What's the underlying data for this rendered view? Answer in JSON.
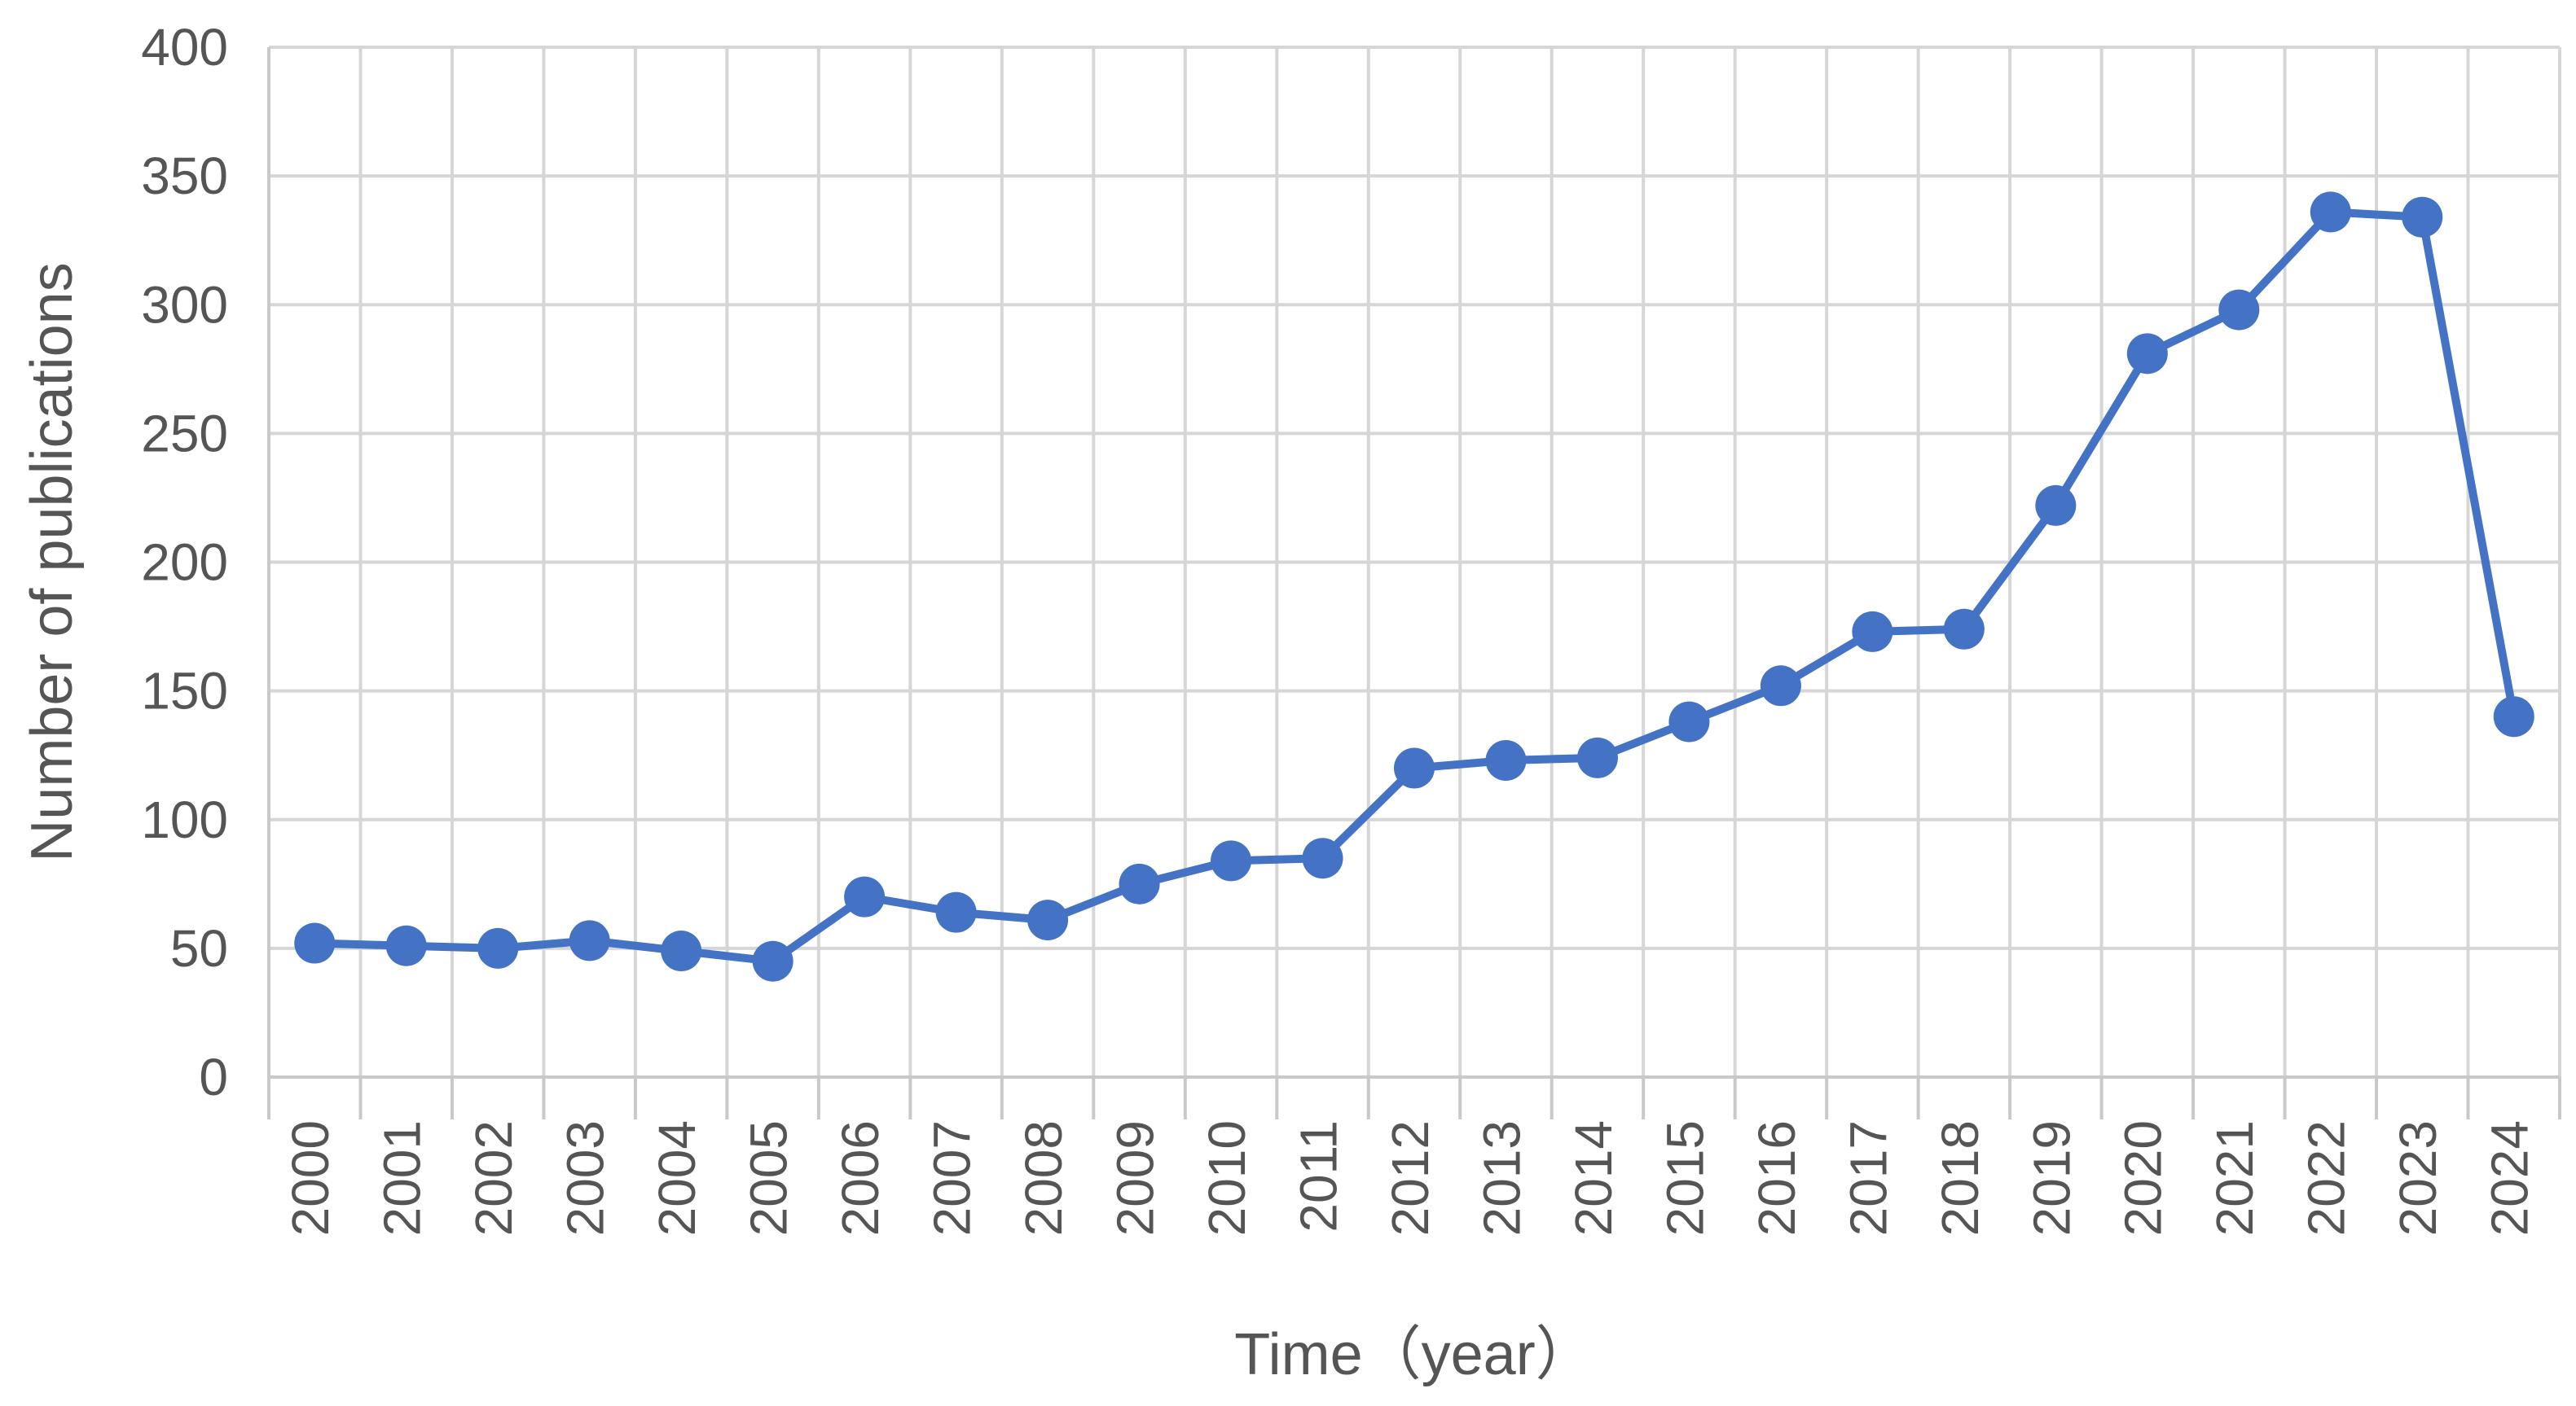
{
  "chart_data": {
    "type": "line",
    "title": "",
    "xlabel": "Time（year）",
    "ylabel": "Number of publications",
    "categories": [
      "2000",
      "2001",
      "2002",
      "2003",
      "2004",
      "2005",
      "2006",
      "2007",
      "2008",
      "2009",
      "2010",
      "2011",
      "2012",
      "2013",
      "2014",
      "2015",
      "2016",
      "2017",
      "2018",
      "2019",
      "2020",
      "2021",
      "2022",
      "2023",
      "2024"
    ],
    "series": [
      {
        "values": [
          52,
          51,
          50,
          53,
          49,
          45,
          70,
          64,
          61,
          75,
          84,
          85,
          120,
          123,
          124,
          138,
          152,
          173,
          174,
          222,
          281,
          298,
          336,
          334,
          140
        ],
        "color": "#4472c4"
      }
    ],
    "ylim": [
      0,
      400
    ],
    "yticks": [
      "0",
      "50",
      "100",
      "150",
      "200",
      "250",
      "300",
      "350",
      "400"
    ],
    "grid": true,
    "legend": "none"
  }
}
